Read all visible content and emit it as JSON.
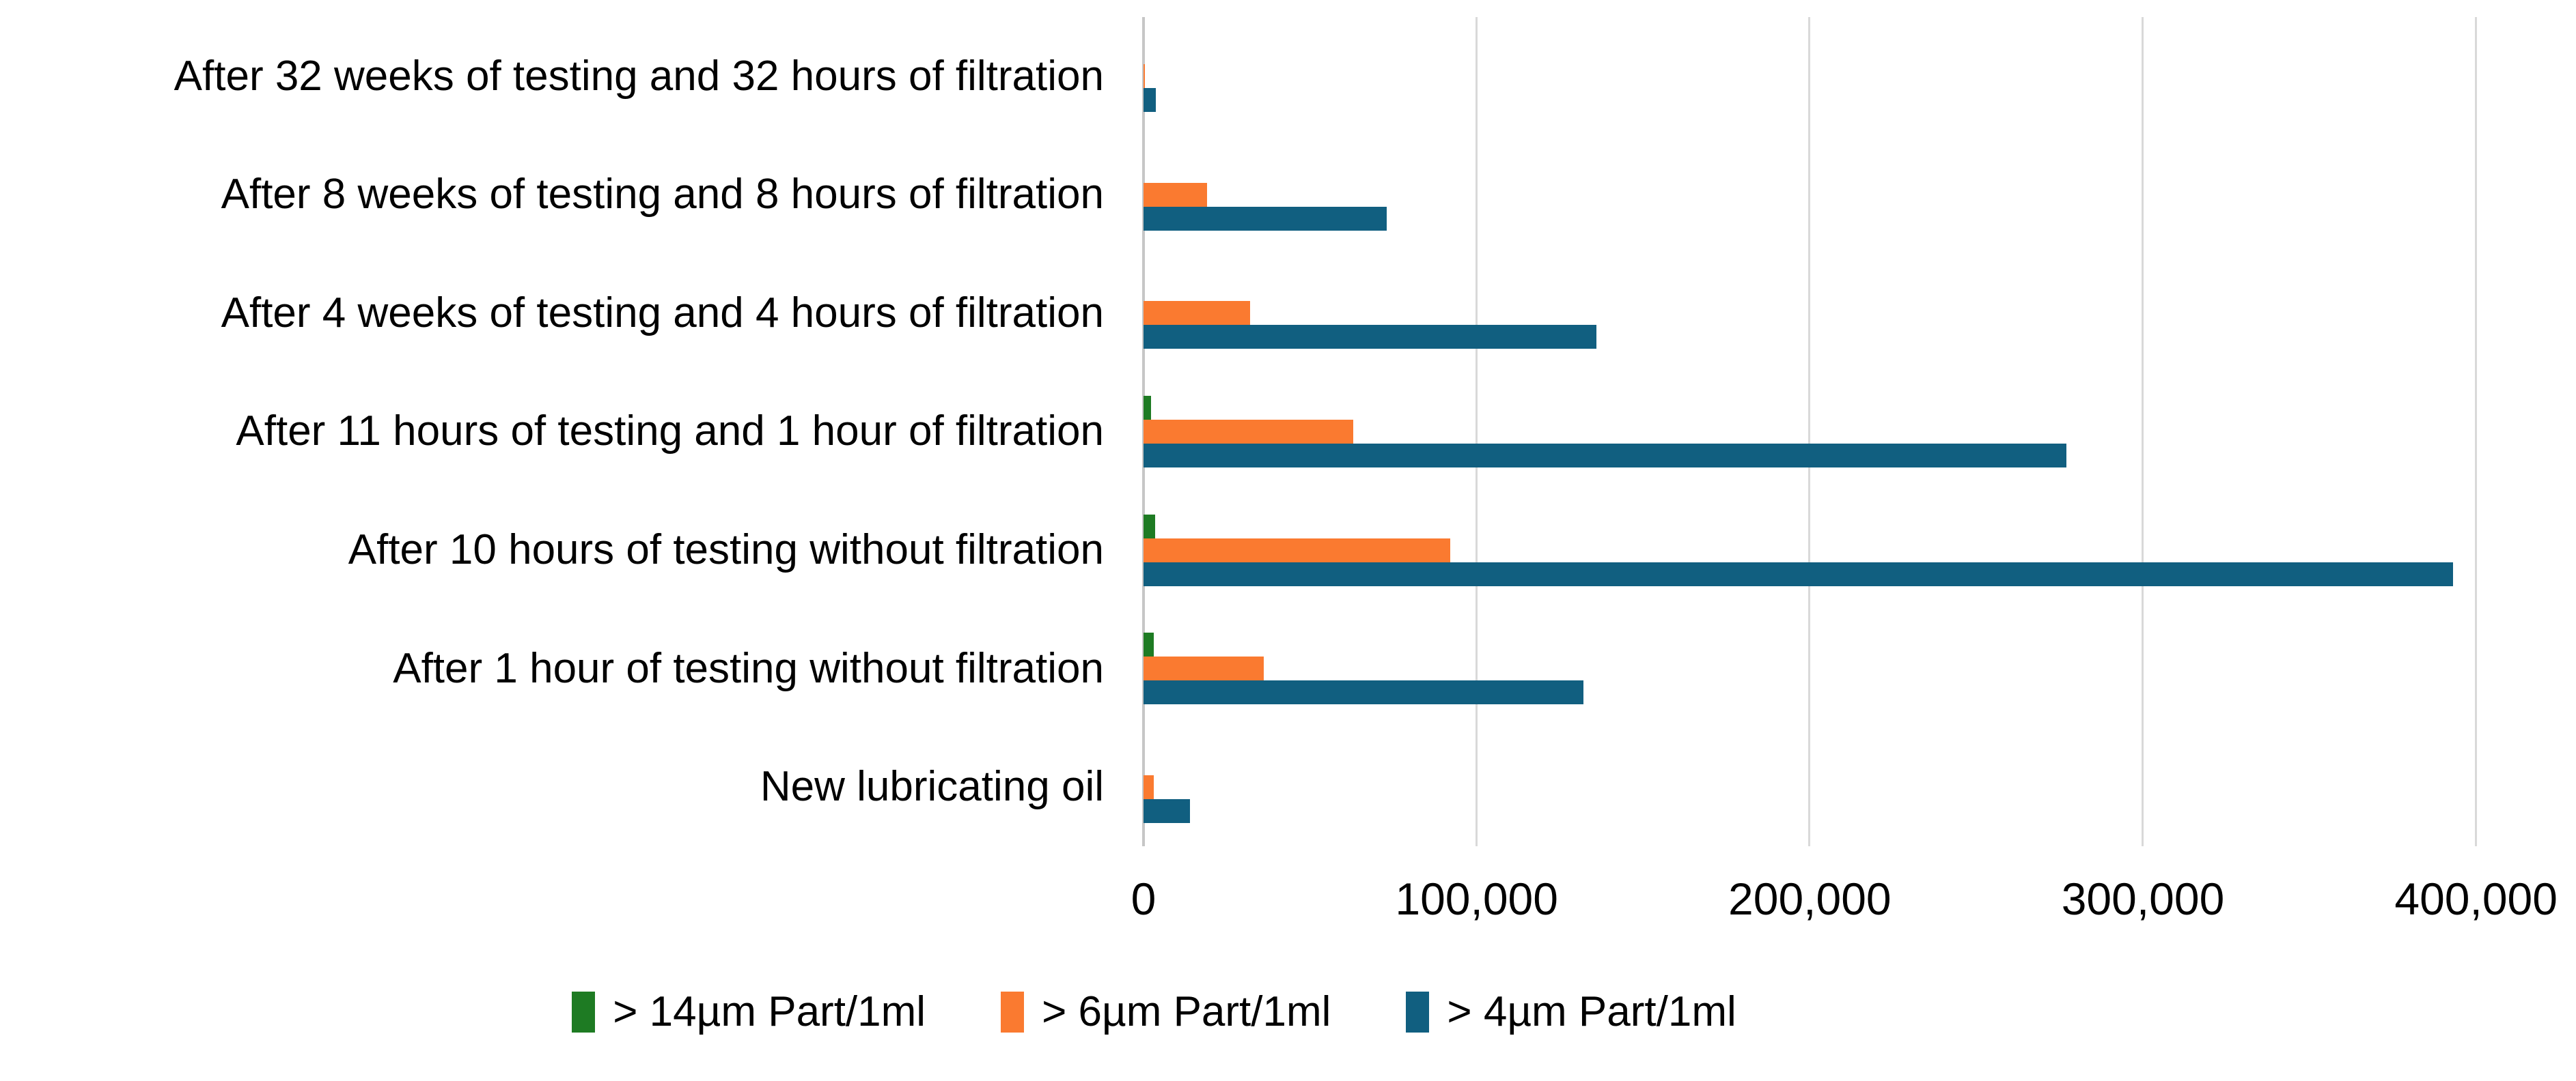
{
  "chart_data": {
    "type": "bar",
    "orientation": "horizontal",
    "title": "",
    "xlabel": "",
    "ylabel": "",
    "categories": [
      "After 32 weeks of testing and 32 hours of filtration",
      "After 8 weeks of testing and 8 hours of filtration",
      "After 4 weeks of testing and 4 hours of filtration",
      "After 11 hours of testing and 1 hour of filtration",
      "After 10 hours of testing without filtration",
      "After 1 hour of testing without filtration",
      "New lubricating oil"
    ],
    "series": [
      {
        "key": "gt14um",
        "name": "> 14µm Part/1ml",
        "color": "#1e7b23",
        "values": [
          0,
          0,
          0,
          2300,
          3500,
          3100,
          0
        ]
      },
      {
        "key": "gt6um",
        "name": "> 6µm Part/1ml",
        "color": "#fa7a30",
        "values": [
          500,
          19000,
          32000,
          63000,
          92000,
          36000,
          3000
        ]
      },
      {
        "key": "gt4um",
        "name": "> 4µm Part/1ml",
        "color": "#115f80",
        "values": [
          3700,
          73000,
          136000,
          277000,
          393000,
          132000,
          14000
        ]
      }
    ],
    "x_ticks": [
      {
        "value": 0,
        "label": "0"
      },
      {
        "value": 100000,
        "label": "100,000"
      },
      {
        "value": 200000,
        "label": "200,000"
      },
      {
        "value": 300000,
        "label": "300,000"
      },
      {
        "value": 400000,
        "label": "400,000"
      }
    ],
    "xlim": [
      0,
      430000
    ],
    "grid": "vertical",
    "legend_position": "bottom",
    "grid_color": "#d9d9d9",
    "axis_line_color": "#c6c6c6",
    "text_color": "#000000",
    "background": "#ffffff"
  }
}
